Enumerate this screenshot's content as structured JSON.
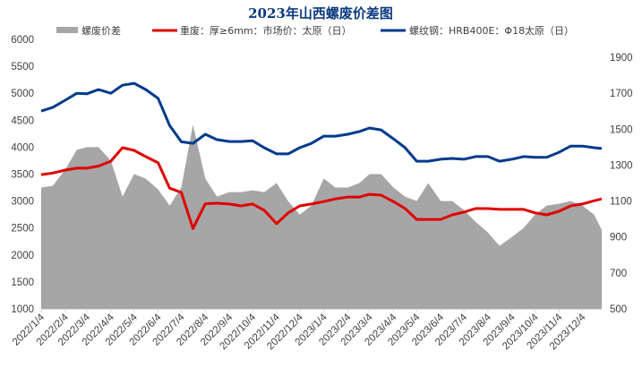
{
  "chart_data": {
    "type": "line",
    "title": "2023年山西螺废价差图",
    "legend_position": "top",
    "grid": false,
    "x": [
      "2022/1/4",
      "2022/1/19",
      "2022/2/4",
      "2022/2/19",
      "2022/3/4",
      "2022/3/19",
      "2022/4/4",
      "2022/4/19",
      "2022/5/4",
      "2022/5/19",
      "2022/6/4",
      "2022/6/19",
      "2022/7/4",
      "2022/7/19",
      "2022/8/4",
      "2022/8/19",
      "2022/9/4",
      "2022/9/19",
      "2022/10/4",
      "2022/10/19",
      "2022/11/4",
      "2022/11/19",
      "2022/12/4",
      "2022/12/19",
      "2023/1/4",
      "2023/1/19",
      "2023/2/4",
      "2023/2/19",
      "2023/3/4",
      "2023/3/19",
      "2023/4/4",
      "2023/4/19",
      "2023/5/4",
      "2023/5/19",
      "2023/6/4",
      "2023/6/19",
      "2023/7/4",
      "2023/7/19",
      "2023/8/4",
      "2023/8/19",
      "2023/9/4",
      "2023/9/19",
      "2023/10/4",
      "2023/10/19",
      "2023/11/4",
      "2023/11/19",
      "2023/12/4",
      "2023/12/19",
      "2023/12/29"
    ],
    "x_tick_labels": [
      "2022/1/4",
      "2022/2/4",
      "2022/3/4",
      "2022/4/4",
      "2022/5/4",
      "2022/6/4",
      "2022/7/4",
      "2022/8/4",
      "2022/9/4",
      "2022/10/4",
      "2022/11/4",
      "2022/12/4",
      "2023/1/4",
      "2023/2/4",
      "2023/3/4",
      "2023/4/4",
      "2023/5/4",
      "2023/6/4",
      "2023/7/4",
      "2023/8/4",
      "2023/9/4",
      "2023/10/4",
      "2023/11/4",
      "2023/12/4"
    ],
    "y_left": {
      "ylim": [
        1000,
        6000
      ],
      "ticks": [
        "1000",
        "1500",
        "2000",
        "2500",
        "3000",
        "3500",
        "4000",
        "4500",
        "5000",
        "5500",
        "6000"
      ]
    },
    "y_right": {
      "ylim": [
        500,
        2000
      ],
      "ticks": [
        "500",
        "700",
        "900",
        "1100",
        "1300",
        "1500",
        "1700",
        "1900"
      ]
    },
    "series": [
      {
        "name": "螺废价差",
        "type": "area",
        "axis": "right",
        "color": "#a6a6a6",
        "values": [
          1175,
          1185,
          1275,
          1385,
          1400,
          1400,
          1325,
          1125,
          1250,
          1225,
          1165,
          1075,
          1175,
          1525,
          1225,
          1125,
          1150,
          1150,
          1160,
          1150,
          1200,
          1100,
          1025,
          1075,
          1225,
          1175,
          1175,
          1200,
          1250,
          1250,
          1175,
          1125,
          1100,
          1200,
          1100,
          1100,
          1050,
          985,
          925,
          850,
          900,
          950,
          1025,
          1075,
          1085,
          1100,
          1075,
          1025,
          940
        ]
      },
      {
        "name": "重废：厚≥6mm：市场价：太原（日）",
        "type": "line",
        "axis": "left",
        "color": "#e00000",
        "values": [
          3490,
          3520,
          3575,
          3610,
          3610,
          3650,
          3740,
          3990,
          3940,
          3825,
          3710,
          3240,
          3160,
          2490,
          2950,
          2960,
          2945,
          2910,
          2945,
          2830,
          2580,
          2780,
          2910,
          2945,
          2990,
          3040,
          3075,
          3075,
          3125,
          3110,
          2990,
          2860,
          2660,
          2660,
          2660,
          2745,
          2795,
          2860,
          2860,
          2845,
          2845,
          2845,
          2780,
          2745,
          2810,
          2910,
          2945,
          3005,
          3040
        ]
      },
      {
        "name": "螺纹钢：HRB400E：Φ18太原（日）",
        "type": "line",
        "axis": "left",
        "color": "#003a8c",
        "values": [
          4670,
          4740,
          4870,
          5000,
          4990,
          5070,
          5000,
          5150,
          5185,
          5070,
          4905,
          4400,
          4100,
          4070,
          4240,
          4140,
          4105,
          4105,
          4120,
          3990,
          3875,
          3875,
          3990,
          4070,
          4205,
          4205,
          4240,
          4290,
          4355,
          4320,
          4155,
          3990,
          3740,
          3740,
          3775,
          3790,
          3775,
          3825,
          3825,
          3740,
          3775,
          3825,
          3810,
          3810,
          3905,
          4020,
          4020,
          3990,
          3975
        ]
      }
    ]
  }
}
